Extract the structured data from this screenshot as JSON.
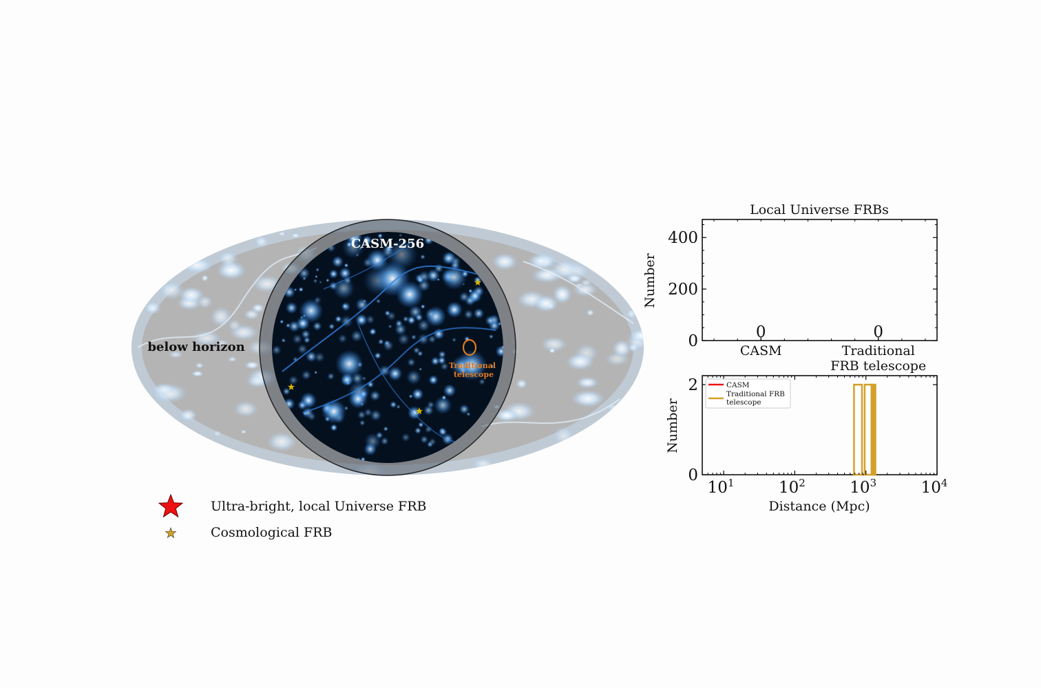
{
  "sky_map": {
    "casm_label": "CASM-256",
    "below_horizon_label": "below horizon",
    "traditional_label_line1": "Traditional",
    "traditional_label_line2": "telescope",
    "traditional_color": "#e07b20",
    "cosmological_star_color": "#d4b400",
    "cosmic_web_color": "#3a8ff0",
    "below_horizon_fill": "#b4b4b4"
  },
  "legend": {
    "items": [
      {
        "label": "Ultra-bright, local Universe FRB",
        "marker": "large-red-star-icon",
        "color": "#ee1111"
      },
      {
        "label": "Cosmological FRB",
        "marker": "small-gold-star-icon",
        "color": "#d4a020"
      }
    ]
  },
  "chart_data": [
    {
      "type": "bar",
      "title": "Local Universe FRBs",
      "xlabel": "",
      "ylabel": "Number",
      "categories": [
        "CASM",
        "Traditional\nFRB telescope"
      ],
      "values": [
        0,
        0
      ],
      "value_labels": [
        "0",
        "0"
      ],
      "ylim": [
        0,
        470
      ],
      "yticks": [
        0,
        200,
        400
      ],
      "ytick_labels": [
        "0",
        "200",
        "400"
      ]
    },
    {
      "type": "area",
      "title": "",
      "xlabel": "Distance (Mpc)",
      "ylabel": "Number",
      "xscale": "log",
      "xlim": [
        5,
        10000
      ],
      "ylim": [
        0,
        2.2
      ],
      "xticks": [
        10,
        100,
        1000,
        10000
      ],
      "xtick_labels": [
        "10^1",
        "10^2",
        "10^3",
        "10^4"
      ],
      "yticks": [
        0,
        2
      ],
      "ytick_labels": [
        "0",
        "2"
      ],
      "legend_position": "top-left",
      "series": [
        {
          "name": "CASM",
          "color": "#ee1111",
          "bins": []
        },
        {
          "name": "Traditional FRB\ntelescope",
          "color": "#d4a02a",
          "bins": [
            [
              680,
              880,
              2
            ],
            [
              960,
              1200,
              2
            ],
            [
              1200,
              1260,
              2
            ],
            [
              1260,
              1300,
              2
            ],
            [
              1300,
              1360,
              2
            ]
          ]
        }
      ]
    }
  ]
}
